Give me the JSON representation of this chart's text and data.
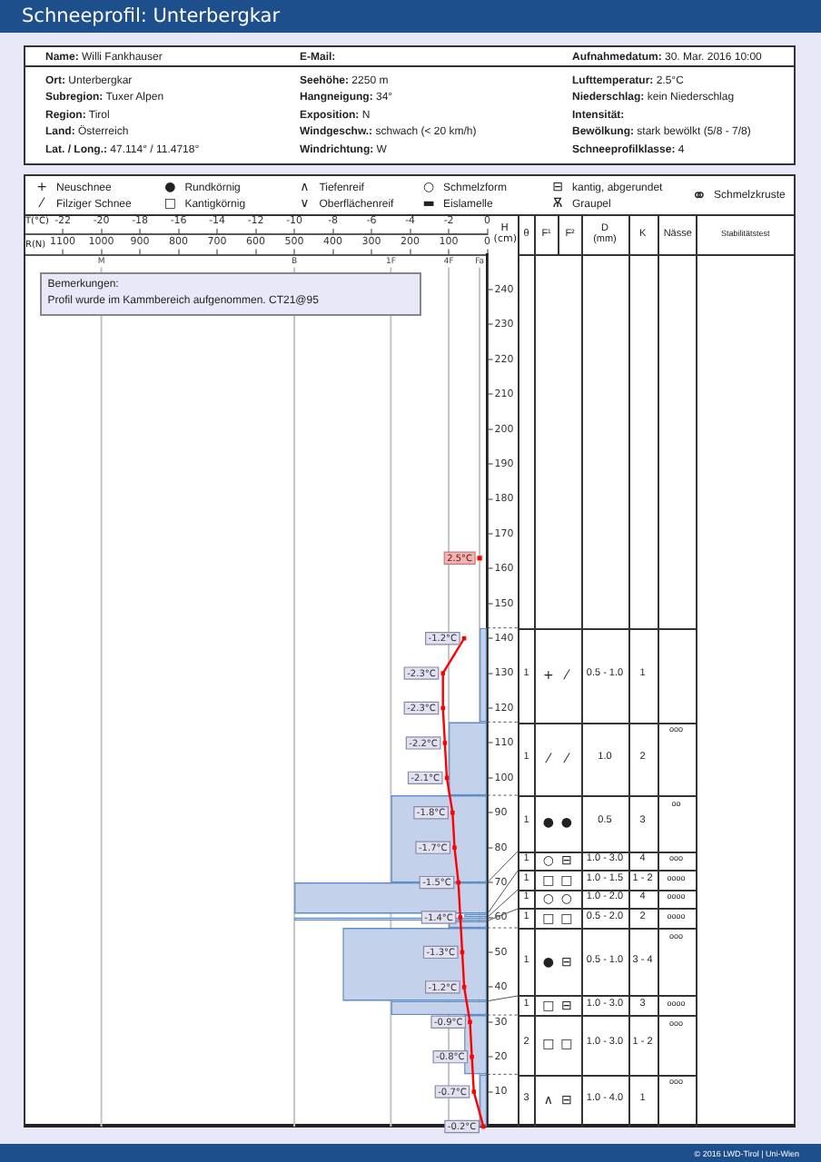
{
  "chart_data": [
    {
      "type": "other",
      "title": "Schneeprofil: Unterbergkar",
      "annotations": [
        "Name: Willi Fankhauser",
        "E-Mail:",
        "Aufnahmedatum: 30. Mar. 2016 10:00",
        "Ort: Unterbergkar",
        "Seehöhe: 2250 m",
        "Lufttemperatur: 2.5°C",
        "Subregion: Tuxer Alpen",
        "Hangneigung: 34°",
        "Niederschlag: kein Niederschlag",
        "Region: Tirol",
        "Exposition: N",
        "Intensität:",
        "Land: Österreich",
        "Windgeschw.: schwach (< 20 km/h)",
        "Bewölkung: stark bewölkt (5/8 - 7/8)",
        "Lat. / Long.: 47.114° / 11.4718°",
        "Windrichtung: W",
        "Schneeprofilklasse: 4"
      ]
    },
    {
      "type": "other",
      "annotations": [
        "+",
        "Neuschnee",
        "⁄",
        "Filziger Schnee",
        "●",
        "Rundkörnig",
        "□",
        "Kantigkörnig",
        "∧",
        "Tiefenreif",
        "∨",
        "Oberflächenreif",
        "○",
        "Schmelzform",
        "▬",
        "Eislamelle",
        "⊟",
        "kantig, abgerundet",
        "Ѫ",
        "Graupel",
        "⚭",
        "Schmelzkruste"
      ]
    },
    {
      "type": "histogram",
      "orientation": "horizontal",
      "xlabel": "R(N)",
      "x2label": "T(°C)",
      "ylabel": "H (cm)",
      "xlim": [
        1200,
        0
      ],
      "xticks": [
        1100,
        1000,
        900,
        800,
        700,
        600,
        500,
        400,
        300,
        200,
        100,
        0
      ],
      "x2lim": [
        -24,
        0
      ],
      "x2ticks": [
        -22,
        -20,
        -18,
        -16,
        -14,
        -12,
        -10,
        -8,
        -6,
        -4,
        -2,
        0
      ],
      "ylim": [
        0,
        250
      ],
      "yticks": [
        10,
        20,
        30,
        40,
        50,
        60,
        70,
        80,
        90,
        100,
        110,
        120,
        130,
        140,
        150,
        160,
        170,
        180,
        190,
        200,
        210,
        220,
        230,
        240
      ],
      "marker": "square",
      "line_style": "solid",
      "ref_lines": [
        {
          "axis": "x",
          "value": 1000,
          "label": "M",
          "color": "#c4c4c4"
        },
        {
          "axis": "x",
          "value": 500,
          "label": "B",
          "color": "#c4c4c4"
        },
        {
          "axis": "x",
          "value": 250,
          "label": "1F",
          "color": "#c4c4c4"
        },
        {
          "axis": "x",
          "value": 100,
          "label": "4F",
          "color": "#c4c4c4"
        },
        {
          "axis": "x",
          "value": 20,
          "label": "Fa",
          "color": "#c4c4c4"
        }
      ],
      "annotations": [
        "Bemerkungen:",
        "Profil wurde im Kammbereich aufgenommen. CT21@95",
        {
          "text": "2.5°C",
          "x": 20,
          "y": 163
        },
        "© 2016 LWD-Tirol | Uni-Wien"
      ],
      "series": [
        {
          "type": "histogram",
          "color": "#c3d2ea",
          "bins": [
            0,
            15,
            32,
            36,
            57,
            59,
            60,
            61,
            70,
            95,
            116,
            143
          ],
          "values": [
            20,
            60,
            250,
            375,
            100,
            500,
            60,
            500,
            250,
            100,
            20
          ]
        },
        {
          "type": "line",
          "color": "#ff0000",
          "axis": "x2",
          "x": [
            140,
            130,
            120,
            110,
            100,
            90,
            80,
            70,
            60,
            50,
            40,
            30,
            20,
            10,
            0
          ],
          "values": [
            -1.2,
            -2.3,
            -2.3,
            -2.2,
            -2.1,
            -1.8,
            -1.7,
            -1.5,
            -1.4,
            -1.3,
            -1.2,
            -0.9,
            -0.8,
            -0.7,
            -0.2
          ],
          "value_labels": [
            "-1.2°C",
            "-2.3°C",
            "-2.3°C",
            "-2.2°C",
            "-2.1°C",
            "-1.8°C",
            "-1.7°C",
            "-1.5°C",
            "-1.4°C",
            "-1.3°C",
            "-1.2°C",
            "-0.9°C",
            "-0.8°C",
            "-0.7°C",
            "-0.2°C"
          ]
        }
      ]
    },
    {
      "type": "other",
      "categories": [
        "θ",
        "F¹",
        "F²",
        "D (mm)",
        "K",
        "Nässe",
        "Stabilitätstest"
      ],
      "cell_labels": [
        [
          "1",
          "+",
          "⁄",
          "0.5 - 1.0",
          "1",
          null,
          null
        ],
        [
          "1",
          "⁄",
          "⁄",
          "1.0",
          "2",
          "ooo",
          null
        ],
        [
          "1",
          "●",
          "●",
          "0.5",
          "3",
          "oo",
          null
        ],
        [
          "1",
          "○",
          "⊟",
          "1.0 - 3.0",
          "4",
          "ooo",
          null
        ],
        [
          "1",
          "□",
          "□",
          "1.0 - 1.5",
          "1 - 2",
          "oooo",
          null
        ],
        [
          "1",
          "○",
          "○",
          "1.0 - 2.0",
          "4",
          "oooo",
          null
        ],
        [
          "1",
          "□",
          "□",
          "0.5 - 2.0",
          "2",
          "oooo",
          null
        ],
        [
          "1",
          "●",
          "⊟",
          "0.5 - 1.0",
          "3 - 4",
          "ooo",
          null
        ],
        [
          "1",
          "□",
          "⊟",
          "1.0 - 3.0",
          "3",
          "oooo",
          null
        ],
        [
          "2",
          "□",
          "□",
          "1.0 - 3.0",
          "1 - 2",
          "ooo",
          null
        ],
        [
          "3",
          "∧",
          "⊟",
          "1.0 - 4.0",
          "1",
          "ooo",
          null
        ]
      ]
    }
  ]
}
